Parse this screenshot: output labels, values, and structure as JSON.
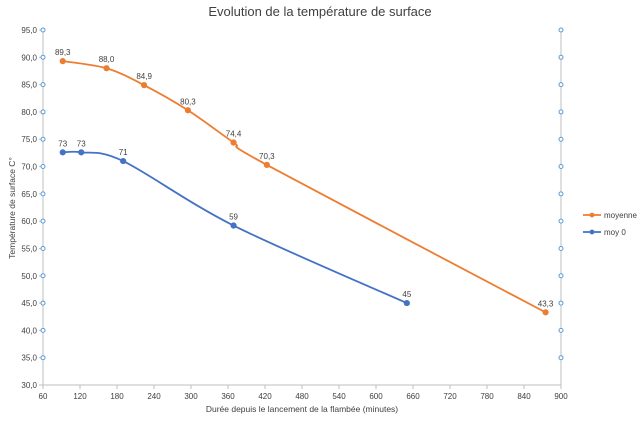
{
  "chart_data": {
    "type": "line",
    "title": "Evolution de la température de surface",
    "xlabel": "Durée depuis le lancement de la flambée (minutes)",
    "ylabel": "Température de surface C°",
    "xlim": [
      60,
      900
    ],
    "ylim": [
      30,
      95
    ],
    "x_ticks": [
      60,
      120,
      180,
      240,
      300,
      360,
      420,
      480,
      540,
      600,
      660,
      720,
      780,
      840,
      900
    ],
    "y_ticks": [
      "30,0",
      "35,0",
      "40,0",
      "45,0",
      "50,0",
      "55,0",
      "60,0",
      "65,0",
      "70,0",
      "75,0",
      "80,0",
      "85,0",
      "90,0",
      "95,0"
    ],
    "grid": false,
    "legend_position": "right",
    "series": [
      {
        "name": "moyenne",
        "color": "#ED7D31",
        "points": [
          {
            "x": 92,
            "y": 89.3,
            "label": "89,3"
          },
          {
            "x": 163,
            "y": 88.0,
            "label": "88,0"
          },
          {
            "x": 224,
            "y": 84.9,
            "label": "84,9"
          },
          {
            "x": 295,
            "y": 80.3,
            "label": "80,3"
          },
          {
            "x": 369,
            "y": 74.4,
            "label": "74,4"
          },
          {
            "x": 423,
            "y": 70.3,
            "label": "70,3"
          },
          {
            "x": 875,
            "y": 43.3,
            "label": "43,3"
          }
        ]
      },
      {
        "name": "moy 0",
        "color": "#4472C4",
        "points": [
          {
            "x": 92,
            "y": 72.6,
            "label": "73"
          },
          {
            "x": 122,
            "y": 72.6,
            "label": "73"
          },
          {
            "x": 190,
            "y": 71.0,
            "label": "71"
          },
          {
            "x": 369,
            "y": 59.2,
            "label": "59"
          },
          {
            "x": 650,
            "y": 45.0,
            "label": "45"
          }
        ]
      }
    ],
    "secondary_axis_marker_color": "#5B9BD5"
  }
}
